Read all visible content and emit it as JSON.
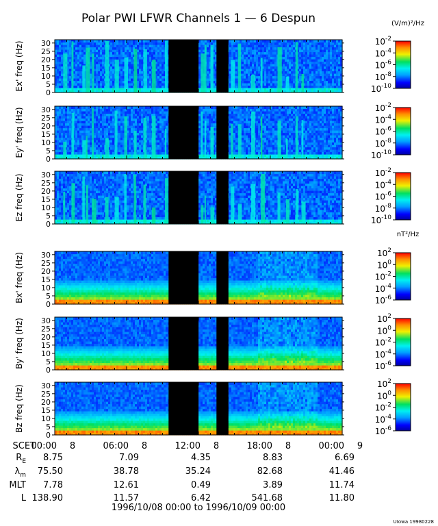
{
  "title": "Polar PWI LFWR Channels 1 — 6 Despun",
  "unit_e": "(V/m)²/Hz",
  "unit_b": "nT²/Hz",
  "credit": "UIowa 19980228",
  "date_range": "1996/10/08 00:00 to 1996/10/09 00:00",
  "colorbar_e": {
    "exponents": [
      "-2",
      "-4",
      "-6",
      "-8",
      "-10"
    ],
    "log_min": -10,
    "log_max": -2
  },
  "colorbar_b": {
    "exponents": [
      "2",
      "0",
      "-2",
      "-4",
      "-6"
    ],
    "log_min": -6,
    "log_max": 2
  },
  "time_axis": {
    "label": "SCET",
    "ticks": [
      {
        "time": "00:00",
        "day": "8"
      },
      {
        "time": "06:00",
        "day": "8"
      },
      {
        "time": "12:00",
        "day": "8"
      },
      {
        "time": "18:00",
        "day": "8"
      },
      {
        "time": "00:00",
        "day": "9"
      }
    ]
  },
  "ephemeris": [
    {
      "label": "R",
      "sub": "E",
      "values": [
        "8.75",
        "7.09",
        "4.35",
        "8.83",
        "6.69"
      ]
    },
    {
      "label": "λ",
      "sub": "m",
      "values": [
        "75.50",
        "38.78",
        "35.24",
        "82.68",
        "41.46"
      ]
    },
    {
      "label": "MLT",
      "sub": "",
      "values": [
        "7.78",
        "12.61",
        "0.49",
        "3.89",
        "11.74"
      ]
    },
    {
      "label": "L",
      "sub": "",
      "values": [
        "138.90",
        "11.57",
        "6.42",
        "541.68",
        "11.80"
      ]
    }
  ],
  "chart_data": [
    {
      "type": "heatmap",
      "ylabel": "Ex' freq (Hz)",
      "ylim": [
        0,
        32
      ],
      "yticks": [
        "0",
        "5",
        "10",
        "15",
        "20",
        "25",
        "30"
      ],
      "xlim_hours": [
        0,
        24
      ],
      "data_gaps_hours": [
        [
          9.5,
          12.0
        ],
        [
          13.5,
          14.5
        ]
      ],
      "colorbar": "e"
    },
    {
      "type": "heatmap",
      "ylabel": "Ey' freq (Hz)",
      "ylim": [
        0,
        32
      ],
      "yticks": [
        "0",
        "5",
        "10",
        "15",
        "20",
        "25",
        "30"
      ],
      "xlim_hours": [
        0,
        24
      ],
      "data_gaps_hours": [
        [
          9.5,
          12.0
        ],
        [
          13.5,
          14.5
        ]
      ],
      "colorbar": "e"
    },
    {
      "type": "heatmap",
      "ylabel": "Ez freq (Hz)",
      "ylim": [
        0,
        32
      ],
      "yticks": [
        "0",
        "5",
        "10",
        "15",
        "20",
        "25",
        "30"
      ],
      "xlim_hours": [
        0,
        24
      ],
      "data_gaps_hours": [
        [
          9.5,
          12.0
        ],
        [
          13.5,
          14.5
        ]
      ],
      "colorbar": "e"
    },
    {
      "type": "heatmap",
      "ylabel": "Bx' freq (Hz)",
      "ylim": [
        0,
        32
      ],
      "yticks": [
        "0",
        "5",
        "10",
        "15",
        "20",
        "25",
        "30"
      ],
      "xlim_hours": [
        0,
        24
      ],
      "data_gaps_hours": [
        [
          9.5,
          12.0
        ],
        [
          13.5,
          14.5
        ]
      ],
      "colorbar": "b"
    },
    {
      "type": "heatmap",
      "ylabel": "By' freq (Hz)",
      "ylim": [
        0,
        32
      ],
      "yticks": [
        "0",
        "5",
        "10",
        "15",
        "20",
        "25",
        "30"
      ],
      "xlim_hours": [
        0,
        24
      ],
      "data_gaps_hours": [
        [
          9.5,
          12.0
        ],
        [
          13.5,
          14.5
        ]
      ],
      "colorbar": "b"
    },
    {
      "type": "heatmap",
      "ylabel": "Bz freq (Hz)",
      "ylim": [
        0,
        32
      ],
      "yticks": [
        "0",
        "5",
        "10",
        "15",
        "20",
        "25",
        "30"
      ],
      "xlim_hours": [
        0,
        24
      ],
      "data_gaps_hours": [
        [
          9.5,
          12.0
        ],
        [
          13.5,
          14.5
        ]
      ],
      "colorbar": "b"
    }
  ]
}
